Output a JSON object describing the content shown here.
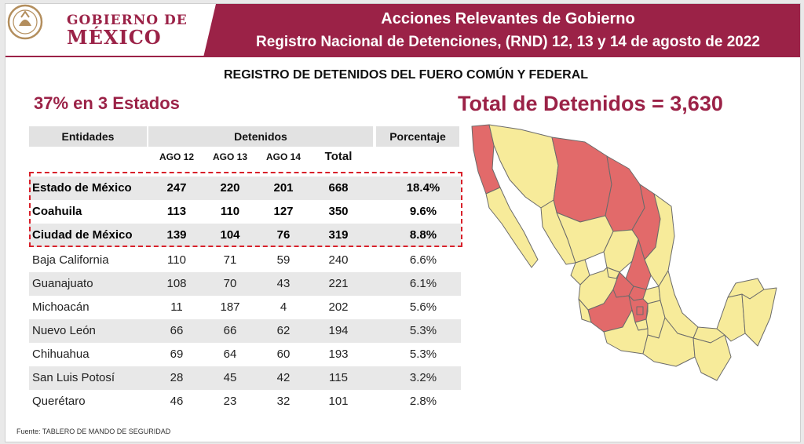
{
  "header": {
    "logo_top": "GOBIERNO DE",
    "logo_bottom": "MÉXICO",
    "title": "Acciones Relevantes de Gobierno",
    "subtitle": "Registro Nacional de Detenciones, (RND) 12, 13 y 14 de agosto de 2022",
    "band_color": "#9b2247"
  },
  "section_title": "REGISTRO DE DETENIDOS DEL FUERO COMÚN Y FEDERAL",
  "highlight_left": "37% en 3 Estados",
  "highlight_right": "Total de Detenidos = 3,630",
  "table": {
    "headers": {
      "entidades": "Entidades",
      "detenidos": "Detenidos",
      "porcentaje": "Porcentaje"
    },
    "subheaders": [
      "AGO 12",
      "AGO 13",
      "AGO 14",
      "Total"
    ],
    "rows": [
      {
        "entidad": "Estado de México",
        "ago12": "247",
        "ago13": "220",
        "ago14": "201",
        "total": "668",
        "porcentaje": "18.4%"
      },
      {
        "entidad": "Coahuila",
        "ago12": "113",
        "ago13": "110",
        "ago14": "127",
        "total": "350",
        "porcentaje": "9.6%"
      },
      {
        "entidad": "Ciudad de México",
        "ago12": "139",
        "ago13": "104",
        "ago14": "76",
        "total": "319",
        "porcentaje": "8.8%"
      },
      {
        "entidad": "Baja California",
        "ago12": "110",
        "ago13": "71",
        "ago14": "59",
        "total": "240",
        "porcentaje": "6.6%"
      },
      {
        "entidad": "Guanajuato",
        "ago12": "108",
        "ago13": "70",
        "ago14": "43",
        "total": "221",
        "porcentaje": "6.1%"
      },
      {
        "entidad": "Michoacán",
        "ago12": "11",
        "ago13": "187",
        "ago14": "4",
        "total": "202",
        "porcentaje": "5.6%"
      },
      {
        "entidad": "Nuevo León",
        "ago12": "66",
        "ago13": "66",
        "ago14": "62",
        "total": "194",
        "porcentaje": "5.3%"
      },
      {
        "entidad": "Chihuahua",
        "ago12": "69",
        "ago13": "64",
        "ago14": "60",
        "total": "193",
        "porcentaje": "5.3%"
      },
      {
        "entidad": "San Luis Potosí",
        "ago12": "28",
        "ago13": "45",
        "ago14": "42",
        "total": "115",
        "porcentaje": "3.2%"
      },
      {
        "entidad": "Querétaro",
        "ago12": "46",
        "ago13": "23",
        "ago14": "32",
        "total": "101",
        "porcentaje": "2.8%"
      }
    ]
  },
  "source": "Fuente: TABLERO DE MANDO DE SEGURIDAD",
  "map": {
    "highlight_color": "#e26a6a",
    "base_color": "#f7eb9a",
    "icon": "mexico-map"
  }
}
